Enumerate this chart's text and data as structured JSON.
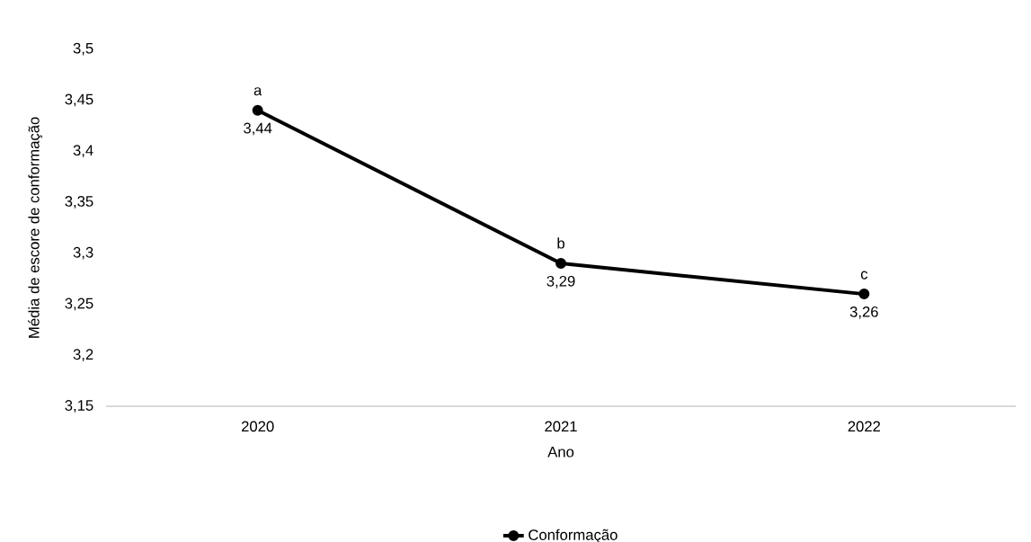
{
  "chart_data": {
    "type": "line",
    "xlabel": "Ano",
    "ylabel": "Média de escore de conformação",
    "categories": [
      "2020",
      "2021",
      "2022"
    ],
    "series": [
      {
        "name": "Conformação",
        "color": "#000000",
        "values": [
          3.44,
          3.29,
          3.26
        ],
        "value_labels": [
          "3,44",
          "3,29",
          "3,26"
        ]
      }
    ],
    "annotations": [
      {
        "text": "a",
        "x": "2020",
        "y": 3.44
      },
      {
        "text": "b",
        "x": "2021",
        "y": 3.29
      },
      {
        "text": "c",
        "x": "2022",
        "y": 3.26
      }
    ],
    "ylim": [
      3.15,
      3.5
    ],
    "yticks": [
      {
        "value": 3.15,
        "label": "3,15"
      },
      {
        "value": 3.2,
        "label": "3,2"
      },
      {
        "value": 3.25,
        "label": "3,25"
      },
      {
        "value": 3.3,
        "label": "3,3"
      },
      {
        "value": 3.35,
        "label": "3,35"
      },
      {
        "value": 3.4,
        "label": "3,4"
      },
      {
        "value": 3.45,
        "label": "3,45"
      },
      {
        "value": 3.5,
        "label": "3,5"
      }
    ],
    "grid": false,
    "legend": "bottom",
    "marker": "circle",
    "line_style": "solid"
  }
}
